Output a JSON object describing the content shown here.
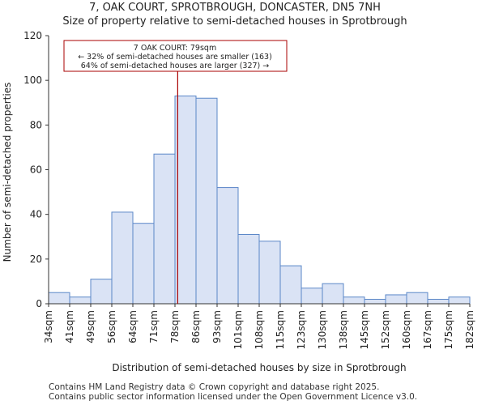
{
  "chart_data": {
    "type": "histogram",
    "title": "7, OAK COURT, SPROTBROUGH, DONCASTER, DN5 7NH",
    "subtitle": "Size of property relative to semi-detached houses in Sprotbrough",
    "xlabel": "Distribution of semi-detached houses by size in Sprotbrough",
    "ylabel": "Number of semi-detached properties",
    "ylim": [
      0,
      120
    ],
    "yticks": [
      0,
      20,
      40,
      60,
      80,
      100,
      120
    ],
    "categories": [
      "34sqm",
      "41sqm",
      "49sqm",
      "56sqm",
      "64sqm",
      "71sqm",
      "78sqm",
      "86sqm",
      "93sqm",
      "101sqm",
      "108sqm",
      "115sqm",
      "123sqm",
      "130sqm",
      "138sqm",
      "145sqm",
      "152sqm",
      "160sqm",
      "167sqm",
      "175sqm",
      "182sqm"
    ],
    "values": [
      5,
      3,
      11,
      41,
      36,
      67,
      93,
      92,
      52,
      31,
      28,
      17,
      7,
      9,
      3,
      2,
      4,
      5,
      2,
      3
    ],
    "marker": {
      "value_sqm": 79,
      "bin_position": 6.13,
      "color": "#aa0000"
    },
    "annotation": {
      "line1": "7 OAK COURT: 79sqm",
      "line2": "← 32% of semi-detached houses are smaller (163)",
      "line3": "64% of semi-detached houses are larger (327) →"
    },
    "bar_fill": "#dae3f5",
    "bar_stroke": "#5b87c8",
    "grid": false
  },
  "footer": {
    "line1": "Contains HM Land Registry data © Crown copyright and database right 2025.",
    "line2": "Contains public sector information licensed under the Open Government Licence v3.0."
  }
}
